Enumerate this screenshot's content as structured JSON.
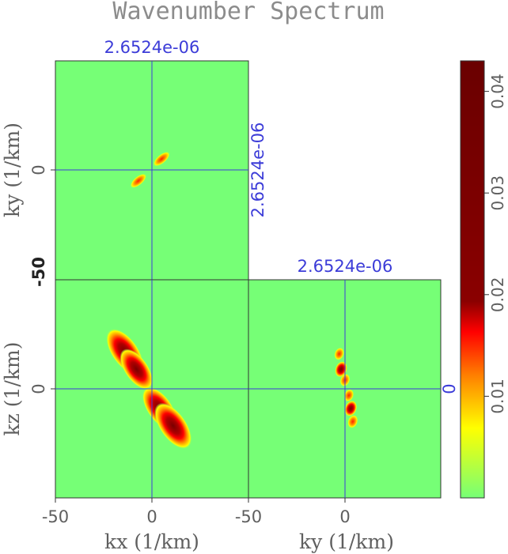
{
  "chart_data": {
    "type": "heatmap",
    "title": "Wavenumber Spectrum",
    "panels": [
      {
        "name": "kx-ky",
        "xlabel": "",
        "ylabel": "ky (1/km)",
        "ytick_labels": [
          "0",
          "-50"
        ],
        "slice_label_top": "2.6524e-06",
        "slice_label_right": "2.6524e-06",
        "blobs": [
          {
            "kx": 5,
            "ky": 5,
            "amp": 0.014
          },
          {
            "kx": -7,
            "ky": -5,
            "amp": 0.012
          }
        ]
      },
      {
        "name": "kx-kz",
        "xlabel": "kx (1/km)",
        "ylabel": "kz (1/km)",
        "xtick_labels": [
          "-50",
          "0"
        ],
        "ytick_labels": [
          "0"
        ],
        "blobs": [
          {
            "kx": -14,
            "kz": 17,
            "amp": 0.042
          },
          {
            "kx": -8,
            "kz": 9,
            "amp": 0.03
          },
          {
            "kx": 4,
            "kz": -9,
            "amp": 0.035
          },
          {
            "kx": 11,
            "kz": -17,
            "amp": 0.042
          }
        ]
      },
      {
        "name": "ky-kz",
        "xlabel": "ky (1/km)",
        "ylabel": "",
        "xtick_labels": [
          "-50",
          "0"
        ],
        "slice_label_top": "2.6524e-06",
        "slice_label_right": "0",
        "blobs": [
          {
            "ky": -3,
            "kz": 16,
            "amp": 0.018
          },
          {
            "ky": -2,
            "kz": 9,
            "amp": 0.035
          },
          {
            "ky": 0,
            "kz": 4,
            "amp": 0.02
          },
          {
            "ky": 2,
            "kz": -3,
            "amp": 0.018
          },
          {
            "ky": 3,
            "kz": -9,
            "amp": 0.035
          },
          {
            "ky": 4,
            "kz": -15,
            "amp": 0.022
          }
        ]
      }
    ],
    "colorbar": {
      "range": [
        0,
        0.043
      ],
      "tick_values": [
        0.01,
        0.02,
        0.03,
        0.04
      ],
      "tick_labels": [
        "0.01",
        "0.02",
        "0.03",
        "0.04"
      ],
      "colors": [
        "#76ff76",
        "#ffff00",
        "#ff7f00",
        "#ff0000",
        "#c00000",
        "#7a0000"
      ]
    },
    "background_color": "#76ff76",
    "crosshair_color": "#3c3cd8"
  }
}
